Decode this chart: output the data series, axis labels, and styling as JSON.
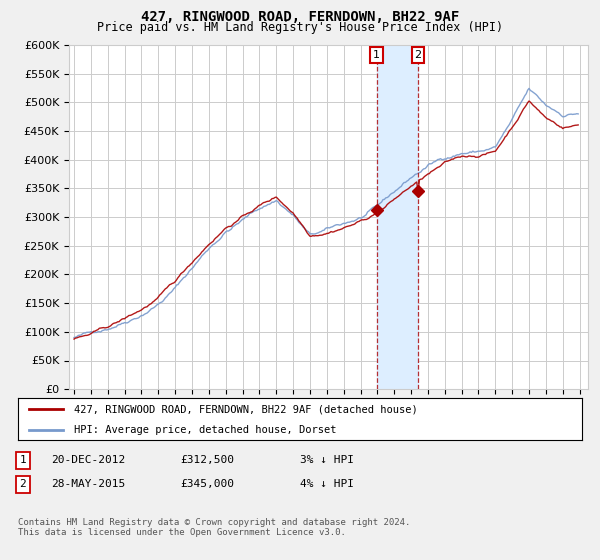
{
  "title": "427, RINGWOOD ROAD, FERNDOWN, BH22 9AF",
  "subtitle": "Price paid vs. HM Land Registry's House Price Index (HPI)",
  "legend_label_red": "427, RINGWOOD ROAD, FERNDOWN, BH22 9AF (detached house)",
  "legend_label_blue": "HPI: Average price, detached house, Dorset",
  "annotation1_label": "1",
  "annotation1_date": "20-DEC-2012",
  "annotation1_price": "£312,500",
  "annotation1_hpi": "3% ↓ HPI",
  "annotation1_year": 2012.96,
  "annotation2_label": "2",
  "annotation2_date": "28-MAY-2015",
  "annotation2_price": "£345,000",
  "annotation2_hpi": "4% ↓ HPI",
  "annotation2_year": 2015.41,
  "footer": "Contains HM Land Registry data © Crown copyright and database right 2024.\nThis data is licensed under the Open Government Licence v3.0.",
  "ylim": [
    0,
    600000
  ],
  "yticks": [
    0,
    50000,
    100000,
    150000,
    200000,
    250000,
    300000,
    350000,
    400000,
    450000,
    500000,
    550000,
    600000
  ],
  "color_red": "#aa0000",
  "color_blue": "#7799cc",
  "color_grid": "#cccccc",
  "background_plot": "#ffffff",
  "background_fig": "#f0f0f0",
  "shade_color": "#ddeeff",
  "sale1_value": 312500,
  "sale2_value": 345000
}
